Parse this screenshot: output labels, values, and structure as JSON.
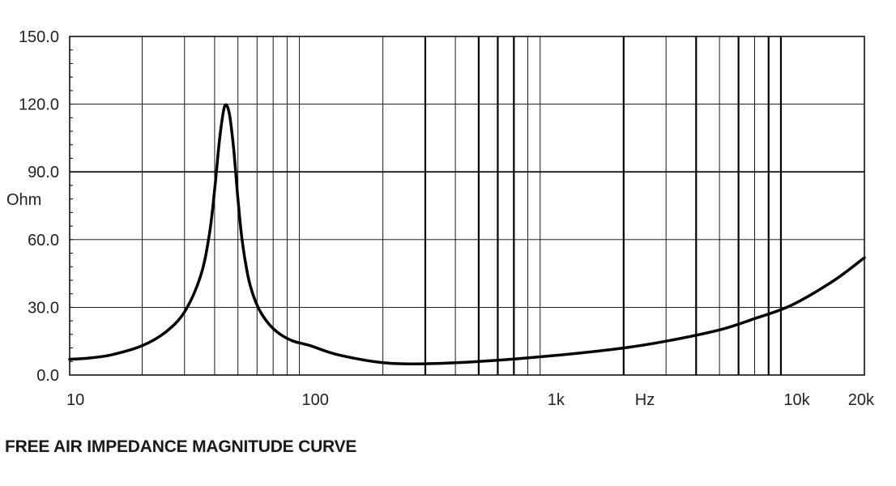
{
  "chart_data": {
    "type": "line",
    "title": "FREE AIR IMPEDANCE MAGNITUDE CURVE",
    "xlabel": "Hz",
    "ylabel": "Ohm",
    "x_scale": "log",
    "xlim": [
      10,
      20000
    ],
    "ylim": [
      0,
      150
    ],
    "grid": true,
    "x_ticks": [
      {
        "value": 10,
        "label": "10"
      },
      {
        "value": 100,
        "label": "100"
      },
      {
        "value": 1000,
        "label": "1k"
      },
      {
        "value": 10000,
        "label": "10k"
      },
      {
        "value": 20000,
        "label": "20k"
      }
    ],
    "y_ticks": [
      {
        "value": 0,
        "label": "0.0"
      },
      {
        "value": 30,
        "label": "30.0"
      },
      {
        "value": 60,
        "label": "60.0"
      },
      {
        "value": 90,
        "label": "90.0"
      },
      {
        "value": 120,
        "label": "120.0"
      },
      {
        "value": 150,
        "label": "150.0"
      }
    ],
    "series": [
      {
        "x": [
          10,
          12,
          15,
          20,
          25,
          30,
          35,
          38,
          40,
          42,
          44,
          46,
          48,
          50,
          52,
          55,
          58,
          62,
          68,
          75,
          85,
          100,
          130,
          200,
          300,
          500,
          1000,
          2000,
          3000,
          5000,
          7000,
          10000,
          15000,
          20000
        ],
        "y": [
          7,
          7.5,
          9,
          13,
          19,
          28,
          44,
          62,
          82,
          105,
          119,
          116,
          100,
          78,
          60,
          44,
          35,
          28,
          22,
          18,
          15,
          13,
          9,
          5.5,
          5,
          6,
          8.5,
          12,
          15,
          20,
          25,
          31,
          42,
          52
        ]
      }
    ],
    "colors": {
      "curve": "#000000",
      "grid": "#000000",
      "background": "#ffffff"
    }
  }
}
